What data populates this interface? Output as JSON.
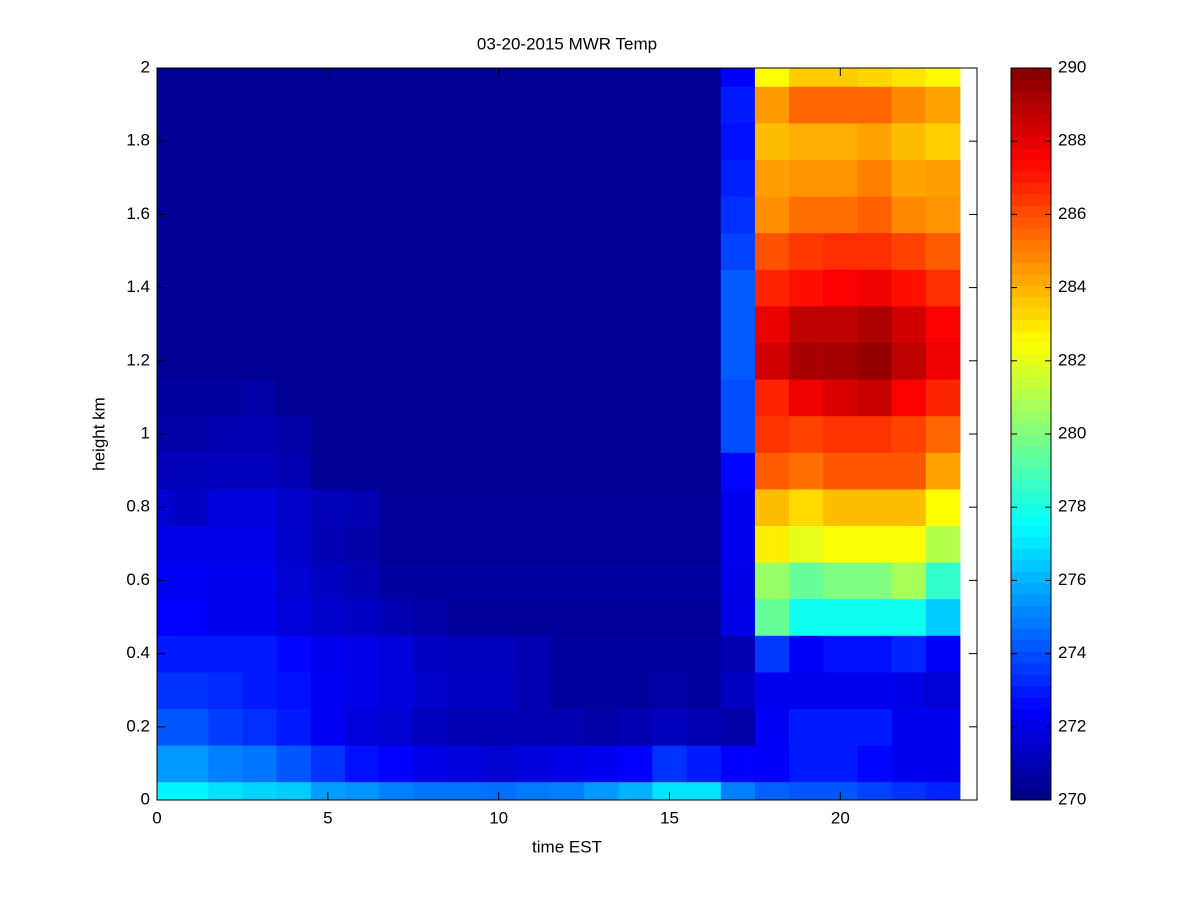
{
  "chart_data": {
    "type": "heatmap",
    "title": "03-20-2015 MWR Temp",
    "x_label": "time EST",
    "y_label": "height km",
    "x": [
      0,
      1,
      2,
      3,
      4,
      5,
      6,
      7,
      8,
      9,
      10,
      11,
      12,
      13,
      14,
      15,
      16,
      17,
      18,
      19,
      20,
      21,
      22,
      23
    ],
    "y": [
      0,
      0.1,
      0.2,
      0.3,
      0.4,
      0.5,
      0.6,
      0.7,
      0.8,
      0.9,
      1,
      1.1,
      1.2,
      1.3,
      1.4,
      1.5,
      1.6,
      1.7,
      1.8,
      1.9,
      2
    ],
    "values": [
      [
        277.3,
        277.3,
        276.9,
        276.7,
        276.5,
        275.6,
        275.4,
        275.0,
        274.8,
        274.8,
        274.7,
        274.9,
        275.0,
        275.5,
        276.0,
        277.0,
        277.0,
        275.0,
        274.4,
        274.2,
        274.2,
        273.8,
        273.5,
        273.2
      ],
      [
        275.5,
        275.5,
        275.0,
        274.8,
        274.2,
        273.5,
        272.8,
        272.5,
        272.0,
        271.8,
        271.6,
        271.8,
        272.0,
        272.2,
        272.5,
        273.5,
        273.0,
        272.5,
        272.4,
        273.0,
        273.0,
        272.6,
        272.2,
        272.2
      ],
      [
        274.2,
        274.2,
        273.7,
        273.4,
        273.0,
        272.3,
        271.8,
        271.6,
        271.2,
        271.0,
        271.0,
        271.0,
        271.0,
        270.8,
        271.0,
        271.2,
        271.0,
        270.8,
        272.3,
        273.0,
        273.0,
        273.0,
        272.2,
        272.2
      ],
      [
        273.5,
        273.5,
        273.3,
        273.0,
        272.8,
        272.3,
        272.0,
        271.8,
        271.5,
        271.3,
        271.3,
        271.0,
        270.6,
        270.6,
        270.6,
        270.8,
        270.6,
        271.3,
        272.2,
        272.2,
        272.2,
        272.2,
        272.0,
        271.7
      ],
      [
        273.0,
        273.0,
        273.0,
        273.0,
        272.6,
        272.2,
        272.0,
        271.8,
        271.3,
        271.2,
        271.2,
        271.0,
        270.6,
        270.6,
        270.6,
        270.6,
        270.6,
        271.0,
        273.6,
        272.4,
        272.8,
        272.8,
        273.2,
        272.4
      ],
      [
        272.5,
        272.5,
        272.2,
        272.2,
        271.8,
        271.5,
        271.3,
        271.0,
        270.8,
        270.5,
        270.5,
        270.5,
        270.5,
        270.5,
        270.5,
        270.5,
        270.5,
        272.0,
        279.5,
        277.8,
        277.8,
        277.8,
        277.8,
        276.5
      ],
      [
        272.3,
        272.3,
        272.2,
        272.2,
        271.6,
        271.3,
        271.0,
        270.6,
        270.6,
        270.6,
        270.6,
        270.6,
        270.6,
        270.6,
        270.6,
        270.6,
        270.6,
        272.0,
        280.5,
        279.5,
        280.0,
        280.0,
        280.8,
        278.5
      ],
      [
        272.0,
        272.0,
        272.0,
        272.0,
        271.5,
        271.0,
        270.8,
        270.5,
        270.5,
        270.5,
        270.5,
        270.5,
        270.5,
        270.5,
        270.5,
        270.5,
        270.5,
        272.2,
        282.8,
        282.0,
        282.4,
        282.4,
        282.4,
        281.0
      ],
      [
        271.6,
        271.3,
        271.8,
        271.8,
        271.4,
        271.1,
        271.0,
        270.5,
        270.5,
        270.5,
        270.5,
        270.5,
        270.5,
        270.5,
        270.5,
        270.5,
        270.5,
        272.2,
        283.8,
        283.2,
        283.8,
        283.8,
        283.8,
        282.5
      ],
      [
        271.1,
        271.1,
        271.2,
        271.2,
        271.0,
        270.4,
        270.4,
        270.4,
        270.4,
        270.4,
        270.4,
        270.4,
        270.4,
        270.4,
        270.4,
        270.4,
        270.4,
        272.6,
        285.7,
        285.3,
        285.8,
        285.8,
        285.8,
        284.3
      ],
      [
        270.8,
        270.8,
        271.0,
        271.0,
        270.8,
        270.4,
        270.4,
        270.4,
        270.4,
        270.4,
        270.4,
        270.4,
        270.4,
        270.4,
        270.4,
        270.4,
        270.4,
        274.0,
        286.5,
        286.2,
        286.5,
        286.5,
        286.2,
        285.5
      ],
      [
        270.6,
        270.6,
        270.6,
        270.8,
        270.4,
        270.4,
        270.4,
        270.4,
        270.4,
        270.4,
        270.4,
        270.4,
        270.4,
        270.4,
        270.4,
        270.4,
        270.4,
        274.0,
        286.8,
        287.8,
        288.2,
        288.6,
        287.6,
        286.8
      ],
      [
        270.4,
        270.4,
        270.4,
        270.4,
        270.4,
        270.4,
        270.4,
        270.4,
        270.4,
        270.4,
        270.4,
        270.4,
        270.4,
        270.4,
        270.4,
        270.4,
        270.4,
        274.3,
        288.4,
        289.2,
        289.3,
        289.6,
        288.8,
        287.8
      ],
      [
        270.4,
        270.4,
        270.4,
        270.4,
        270.4,
        270.4,
        270.4,
        270.4,
        270.4,
        270.4,
        270.4,
        270.4,
        270.4,
        270.4,
        270.4,
        270.4,
        270.4,
        274.3,
        287.9,
        288.8,
        288.8,
        289.1,
        288.4,
        287.6
      ],
      [
        270.4,
        270.4,
        270.4,
        270.4,
        270.4,
        270.4,
        270.4,
        270.4,
        270.4,
        270.4,
        270.4,
        270.4,
        270.4,
        270.4,
        270.4,
        270.4,
        270.4,
        274.3,
        286.8,
        287.2,
        287.6,
        287.8,
        287.2,
        286.6
      ],
      [
        270.4,
        270.4,
        270.4,
        270.4,
        270.4,
        270.4,
        270.4,
        270.4,
        270.4,
        270.4,
        270.4,
        270.4,
        270.4,
        270.4,
        270.4,
        270.4,
        270.4,
        273.8,
        285.9,
        286.4,
        286.6,
        286.6,
        286.2,
        285.7
      ],
      [
        270.4,
        270.4,
        270.4,
        270.4,
        270.4,
        270.4,
        270.4,
        270.4,
        270.4,
        270.4,
        270.4,
        270.4,
        270.4,
        270.4,
        270.4,
        270.4,
        270.4,
        273.4,
        284.7,
        285.3,
        285.3,
        285.6,
        284.8,
        284.6
      ],
      [
        270.4,
        270.4,
        270.4,
        270.4,
        270.4,
        270.4,
        270.4,
        270.4,
        270.4,
        270.4,
        270.4,
        270.4,
        270.4,
        270.4,
        270.4,
        270.4,
        270.4,
        273.1,
        284.4,
        284.6,
        284.6,
        285.0,
        284.3,
        284.4
      ],
      [
        270.4,
        270.4,
        270.4,
        270.4,
        270.4,
        270.4,
        270.4,
        270.4,
        270.4,
        270.4,
        270.4,
        270.4,
        270.4,
        270.4,
        270.4,
        270.4,
        270.4,
        272.8,
        283.8,
        284.1,
        284.1,
        284.3,
        283.8,
        283.4
      ],
      [
        270.4,
        270.4,
        270.4,
        270.4,
        270.4,
        270.4,
        270.4,
        270.4,
        270.4,
        270.4,
        270.4,
        270.4,
        270.4,
        270.4,
        270.4,
        270.4,
        270.4,
        273.0,
        284.5,
        285.5,
        285.5,
        285.5,
        284.8,
        284.3
      ],
      [
        270.4,
        270.4,
        270.4,
        270.4,
        270.4,
        270.4,
        270.4,
        270.4,
        270.4,
        270.4,
        270.4,
        270.4,
        270.4,
        270.4,
        270.4,
        270.4,
        270.4,
        272.4,
        282.5,
        283.5,
        283.5,
        283.3,
        283.0,
        282.6
      ]
    ],
    "xlim": [
      0,
      24
    ],
    "xticks": [
      0,
      5,
      10,
      15,
      20
    ],
    "ylim": [
      0,
      2
    ],
    "yticks": [
      0,
      0.2,
      0.4,
      0.6,
      0.8,
      1,
      1.2,
      1.4,
      1.6,
      1.8,
      2
    ],
    "colormap": "jet",
    "clim": [
      270,
      290
    ],
    "colorbar_ticks": [
      270,
      272,
      274,
      276,
      278,
      280,
      282,
      284,
      286,
      288,
      290
    ]
  }
}
